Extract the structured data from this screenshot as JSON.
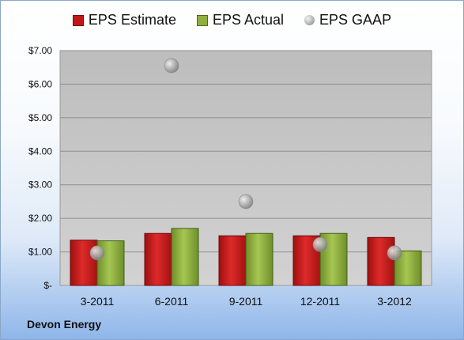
{
  "legend": {
    "estimate": "EPS Estimate",
    "actual": "EPS Actual",
    "gaap": "EPS GAAP"
  },
  "company": "Devon Energy",
  "colors": {
    "estimate": "#c01818",
    "actual": "#8fb03e",
    "gaap": "#a0a0a0"
  },
  "chart_data": {
    "type": "bar",
    "categories": [
      "3-2011",
      "6-2011",
      "9-2011",
      "12-2011",
      "3-2012"
    ],
    "series": [
      {
        "name": "EPS Estimate",
        "values": [
          1.35,
          1.55,
          1.48,
          1.48,
          1.43
        ]
      },
      {
        "name": "EPS Actual",
        "values": [
          1.33,
          1.7,
          1.55,
          1.55,
          1.03
        ]
      },
      {
        "name": "EPS GAAP",
        "values": [
          0.97,
          6.55,
          2.5,
          1.22,
          0.97
        ]
      }
    ],
    "ylim": [
      0,
      7
    ],
    "yticks": [
      0,
      1,
      2,
      3,
      4,
      5,
      6,
      7
    ],
    "ytick_labels": [
      "$-",
      "$1.00",
      "$2.00",
      "$3.00",
      "$4.00",
      "$5.00",
      "$6.00",
      "$7.00"
    ],
    "grid": true,
    "legend_position": "top"
  }
}
